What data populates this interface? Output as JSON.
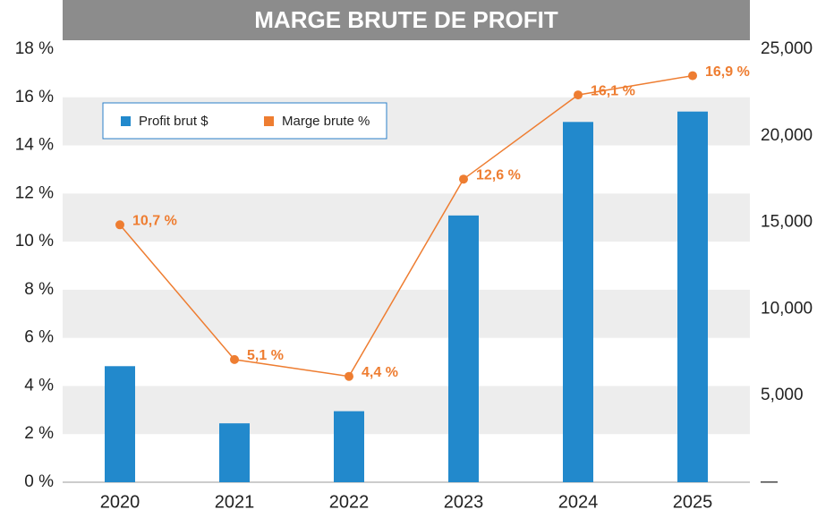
{
  "chart_data": {
    "type": "bar-line",
    "title": "MARGE BRUTE DE PROFIT",
    "categories": [
      "2020",
      "2021",
      "2022",
      "2023",
      "2024",
      "2025"
    ],
    "series": [
      {
        "name": "Profit brut $",
        "type": "bar",
        "axis": "y2",
        "color": "#2289cc",
        "values": [
          6700,
          3400,
          4100,
          15400,
          20800,
          21400
        ]
      },
      {
        "name": "Marge brute %",
        "type": "line",
        "axis": "y",
        "color": "#ee7d31",
        "values": [
          10.7,
          5.1,
          4.4,
          12.6,
          16.1,
          16.9
        ],
        "value_labels": [
          "10,7 %",
          "5,1 %",
          "4,4 %",
          "12,6 %",
          "16,1 %",
          "16,9 %"
        ]
      }
    ],
    "ylim": [
      0,
      18
    ],
    "yticks": [
      {
        "value": 0,
        "label": "0 %"
      },
      {
        "value": 2,
        "label": "2 %"
      },
      {
        "value": 4,
        "label": "4 %"
      },
      {
        "value": 6,
        "label": "6 %"
      },
      {
        "value": 8,
        "label": "8 %"
      },
      {
        "value": 10,
        "label": "10 %"
      },
      {
        "value": 12,
        "label": "12 %"
      },
      {
        "value": 14,
        "label": "14 %"
      },
      {
        "value": 16,
        "label": "16 %"
      },
      {
        "value": 18,
        "label": "18 %"
      }
    ],
    "y2lim": [
      0,
      25000
    ],
    "y2ticks": [
      {
        "value": 0,
        "label": "—"
      },
      {
        "value": 5000,
        "label": "5,000"
      },
      {
        "value": 10000,
        "label": "10,000"
      },
      {
        "value": 15000,
        "label": "15,000"
      },
      {
        "value": 20000,
        "label": "20,000"
      },
      {
        "value": 25000,
        "label": "25,000"
      }
    ],
    "grid": true
  }
}
